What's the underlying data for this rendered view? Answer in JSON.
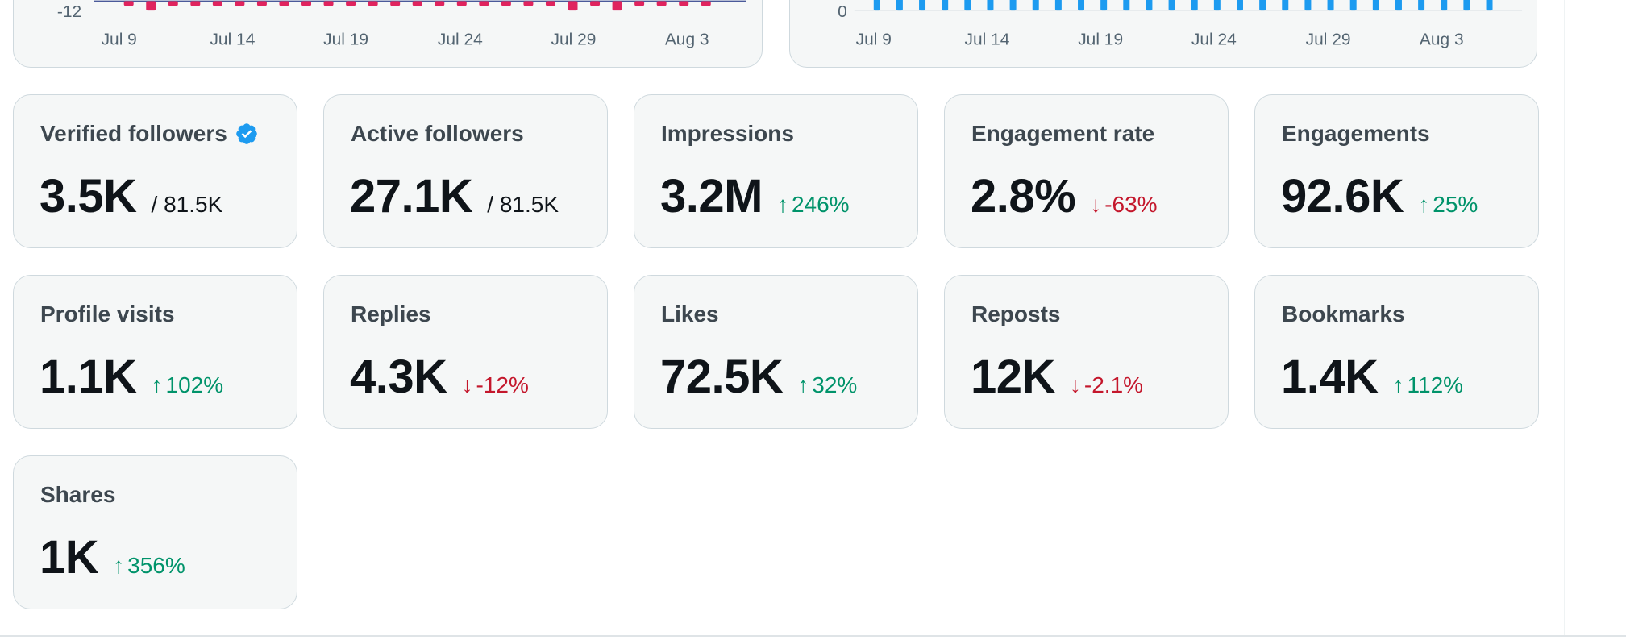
{
  "charts": {
    "left": {
      "y_tick_label": "-12",
      "x_labels": [
        "Jul 9",
        "Jul 14",
        "Jul 19",
        "Jul 24",
        "Jul 29",
        "Aug 3"
      ]
    },
    "right": {
      "y_tick_label": "0",
      "x_labels": [
        "Jul 9",
        "Jul 14",
        "Jul 19",
        "Jul 24",
        "Jul 29",
        "Aug 3"
      ]
    }
  },
  "colors": {
    "negative_bar": "#e0245e",
    "positive_bar": "#1d9bf0",
    "up": "#00936a",
    "down": "#c4172c",
    "verified": "#1d9bf0"
  },
  "stats": [
    {
      "label": "Verified followers",
      "value": "3.5K",
      "total": "/ 81.5K",
      "verified_icon": "verified-badge-icon"
    },
    {
      "label": "Active followers",
      "value": "27.1K",
      "total": "/ 81.5K"
    },
    {
      "label": "Impressions",
      "value": "3.2M",
      "change": "246%",
      "direction": "up"
    },
    {
      "label": "Engagement rate",
      "value": "2.8%",
      "change": "-63%",
      "direction": "down"
    },
    {
      "label": "Engagements",
      "value": "92.6K",
      "change": "25%",
      "direction": "up"
    },
    {
      "label": "Profile visits",
      "value": "1.1K",
      "change": "102%",
      "direction": "up"
    },
    {
      "label": "Replies",
      "value": "4.3K",
      "change": "-12%",
      "direction": "down"
    },
    {
      "label": "Likes",
      "value": "72.5K",
      "change": "32%",
      "direction": "up"
    },
    {
      "label": "Reposts",
      "value": "12K",
      "change": "-2.1%",
      "direction": "down"
    },
    {
      "label": "Bookmarks",
      "value": "1.4K",
      "change": "112%",
      "direction": "up"
    },
    {
      "label": "Shares",
      "value": "1K",
      "change": "356%",
      "direction": "up"
    }
  ]
}
